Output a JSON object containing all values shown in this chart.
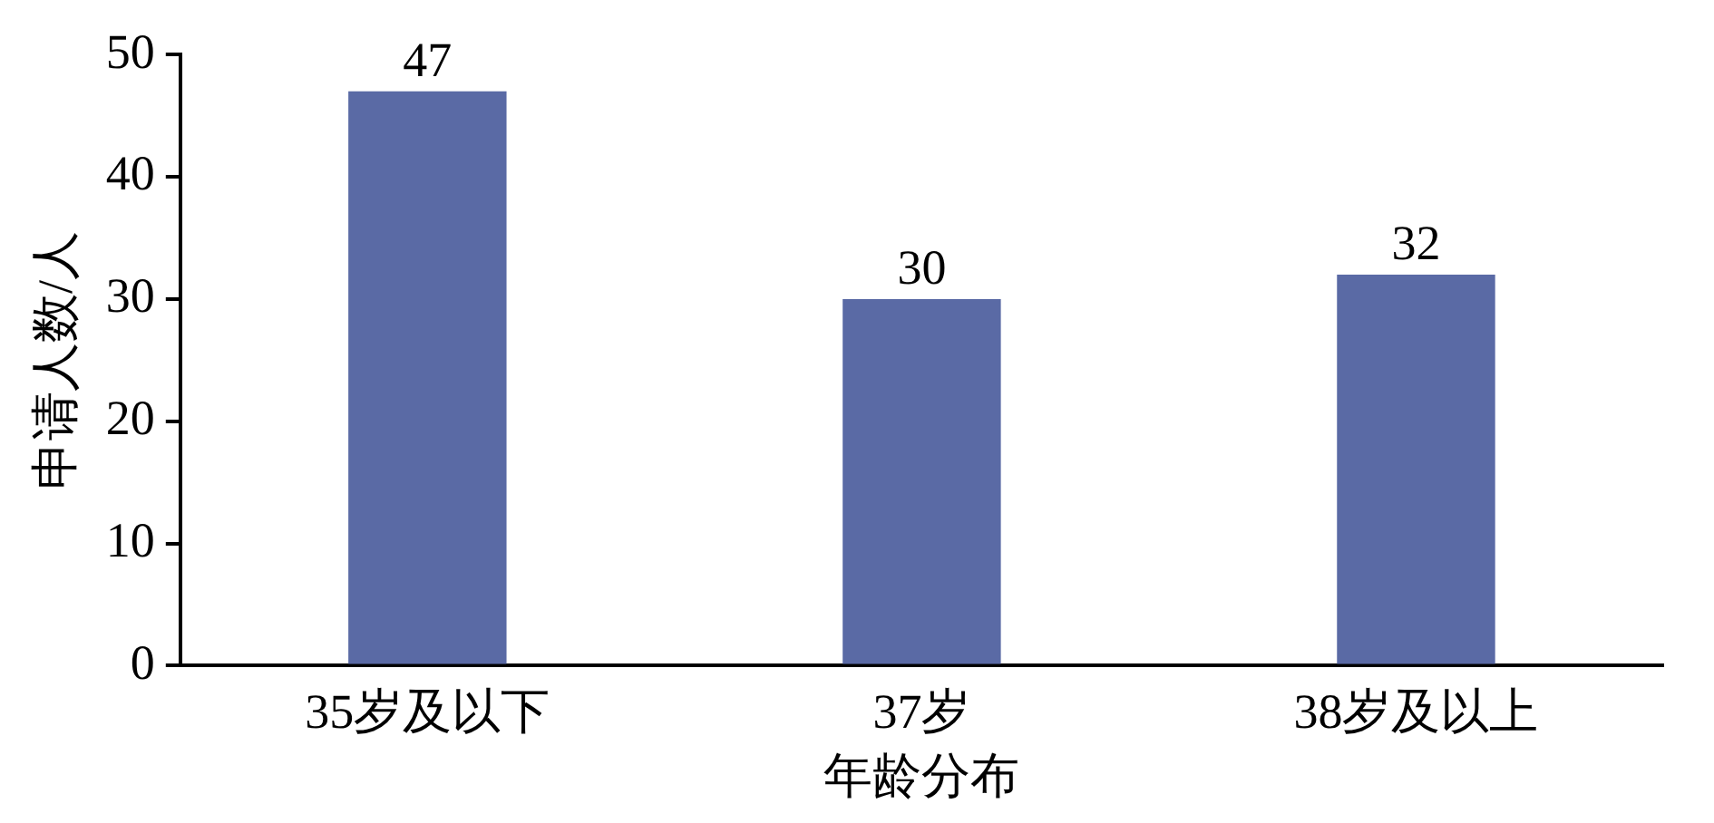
{
  "chart_data": {
    "type": "bar",
    "xlabel": "年龄分布",
    "ylabel": "申请人数/人",
    "categories": [
      "35岁及以下",
      "37岁",
      "38岁及以上"
    ],
    "values": [
      47,
      30,
      32
    ],
    "color": "#5a6aa5",
    "ylim": [
      0,
      50
    ],
    "yticks": [
      0,
      10,
      20,
      30,
      40,
      50
    ],
    "data_labels": true,
    "grid": false,
    "legend": false
  }
}
